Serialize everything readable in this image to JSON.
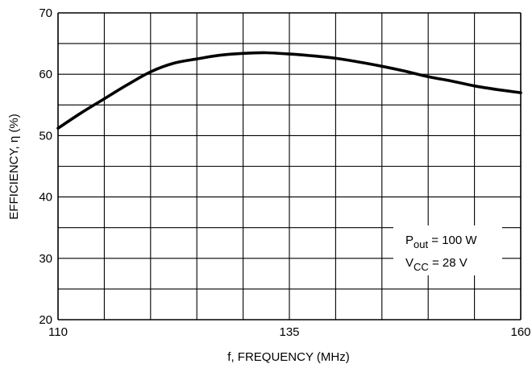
{
  "chart_data": {
    "type": "line",
    "title": "",
    "xlabel": "f, FREQUENCY (MHz)",
    "ylabel": "EFFICIENCY, η (%)",
    "xlim": [
      110,
      160
    ],
    "ylim": [
      20,
      70
    ],
    "x_ticks": [
      110,
      135,
      160
    ],
    "x_tick_labels": [
      "110",
      "135",
      "160"
    ],
    "x_grid_step": 5,
    "y_ticks": [
      20,
      30,
      40,
      50,
      60,
      70
    ],
    "y_tick_labels": [
      "20",
      "30",
      "40",
      "50",
      "60",
      "70"
    ],
    "y_grid_step": 5,
    "grid": true,
    "series": [
      {
        "x": [
          110,
          112.5,
          115,
          117.5,
          120,
          122.5,
          125,
          127.5,
          130,
          132.5,
          135,
          137.5,
          140,
          142.5,
          145,
          147.5,
          150,
          152.5,
          155,
          157.5,
          160
        ],
        "y": [
          51.2,
          53.7,
          56.0,
          58.3,
          60.4,
          61.8,
          62.5,
          63.1,
          63.4,
          63.5,
          63.3,
          63.0,
          62.6,
          62.0,
          61.3,
          60.5,
          59.6,
          58.9,
          58.1,
          57.5,
          57.0
        ]
      }
    ],
    "annotations": {
      "pout_symbol": "P",
      "pout_subscript": "out",
      "pout_value": " = 100 W",
      "vcc_symbol": "V",
      "vcc_subscript": "CC",
      "vcc_value": " = 28 V"
    },
    "legend_placement": "bottom-right inside plot",
    "colors": {
      "line": "#000000",
      "grid": "#000000",
      "background": "#ffffff"
    }
  }
}
